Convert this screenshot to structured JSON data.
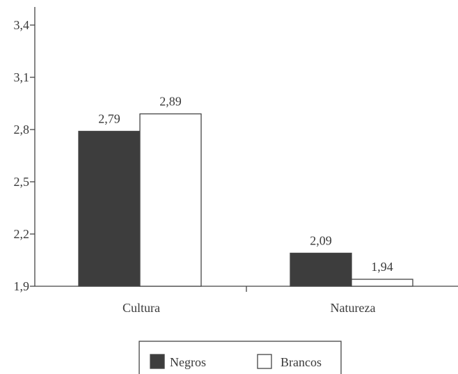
{
  "chart_data": {
    "type": "bar",
    "categories": [
      "Cultura",
      "Natureza"
    ],
    "series": [
      {
        "name": "Negros",
        "values": [
          2.79,
          2.09
        ],
        "value_labels": [
          "2,79",
          "2,09"
        ],
        "color": "#3d3d3d"
      },
      {
        "name": "Brancos",
        "values": [
          2.89,
          1.94
        ],
        "value_labels": [
          "2,89",
          "1,94"
        ],
        "color": "#ffffff"
      }
    ],
    "y_ticks": [
      1.9,
      2.2,
      2.5,
      2.8,
      3.1,
      3.4
    ],
    "y_tick_labels": [
      "1,9",
      "2,2",
      "2,5",
      "2,8",
      "3,1",
      "3,4"
    ],
    "ylim": [
      1.9,
      3.4
    ],
    "title": "",
    "xlabel": "",
    "ylabel": "",
    "grid": false,
    "legend": {
      "position": "bottom-center"
    },
    "axis_color": "#444444"
  }
}
